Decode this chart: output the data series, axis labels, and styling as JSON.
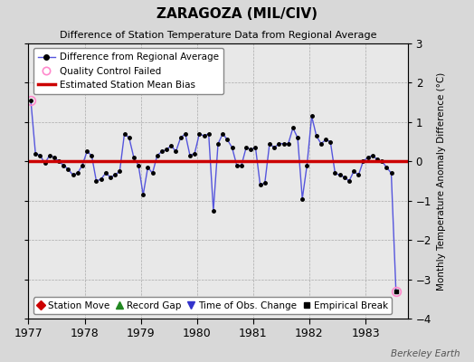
{
  "title": "ZARAGOZA (MIL/CIV)",
  "subtitle": "Difference of Station Temperature Data from Regional Average",
  "ylabel": "Monthly Temperature Anomaly Difference (°C)",
  "watermark": "Berkeley Earth",
  "background_color": "#d8d8d8",
  "plot_bg_color": "#e8e8e8",
  "xlim": [
    1977.0,
    1983.75
  ],
  "ylim": [
    -4.0,
    3.0
  ],
  "yticks": [
    -4,
    -3,
    -2,
    -1,
    0,
    1,
    2,
    3
  ],
  "xticks": [
    1977,
    1978,
    1979,
    1980,
    1981,
    1982,
    1983
  ],
  "bias_line_y": 0.0,
  "bias_color": "#cc0000",
  "line_color": "#5555dd",
  "marker_color": "#000000",
  "qc_fail_color": "#ff88cc",
  "time_series_x": [
    1977.042,
    1977.125,
    1977.208,
    1977.292,
    1977.375,
    1977.458,
    1977.542,
    1977.625,
    1977.708,
    1977.792,
    1977.875,
    1977.958,
    1978.042,
    1978.125,
    1978.208,
    1978.292,
    1978.375,
    1978.458,
    1978.542,
    1978.625,
    1978.708,
    1978.792,
    1978.875,
    1978.958,
    1979.042,
    1979.125,
    1979.208,
    1979.292,
    1979.375,
    1979.458,
    1979.542,
    1979.625,
    1979.708,
    1979.792,
    1979.875,
    1979.958,
    1980.042,
    1980.125,
    1980.208,
    1980.292,
    1980.375,
    1980.458,
    1980.542,
    1980.625,
    1980.708,
    1980.792,
    1980.875,
    1980.958,
    1981.042,
    1981.125,
    1981.208,
    1981.292,
    1981.375,
    1981.458,
    1981.542,
    1981.625,
    1981.708,
    1981.792,
    1981.875,
    1981.958,
    1982.042,
    1982.125,
    1982.208,
    1982.292,
    1982.375,
    1982.458,
    1982.542,
    1982.625,
    1982.708,
    1982.792,
    1982.875,
    1982.958,
    1983.042,
    1983.125,
    1983.208,
    1983.292,
    1983.375,
    1983.458,
    1983.542
  ],
  "time_series_y": [
    1.55,
    0.2,
    0.15,
    -0.05,
    0.15,
    0.1,
    0.0,
    -0.1,
    -0.2,
    -0.35,
    -0.3,
    -0.1,
    0.25,
    0.15,
    -0.5,
    -0.45,
    -0.3,
    -0.4,
    -0.35,
    -0.25,
    0.7,
    0.6,
    0.1,
    -0.1,
    -0.85,
    -0.15,
    -0.3,
    0.15,
    0.25,
    0.3,
    0.4,
    0.25,
    0.6,
    0.7,
    0.15,
    0.2,
    0.7,
    0.65,
    0.7,
    -1.25,
    0.45,
    0.7,
    0.55,
    0.35,
    -0.1,
    -0.1,
    0.35,
    0.3,
    0.35,
    -0.6,
    -0.55,
    0.45,
    0.35,
    0.45,
    0.45,
    0.45,
    0.85,
    0.6,
    -0.95,
    -0.1,
    1.15,
    0.65,
    0.45,
    0.55,
    0.5,
    -0.3,
    -0.35,
    -0.4,
    -0.5,
    -0.25,
    -0.35,
    0.0,
    0.1,
    0.15,
    0.05,
    0.0,
    -0.15,
    -0.3,
    -3.3
  ],
  "qc_fail_points_x": [
    1977.042,
    1983.542
  ],
  "qc_fail_points_y": [
    1.55,
    -3.3
  ],
  "empirical_break_x": [
    1983.542
  ],
  "empirical_break_y": [
    -3.3
  ]
}
